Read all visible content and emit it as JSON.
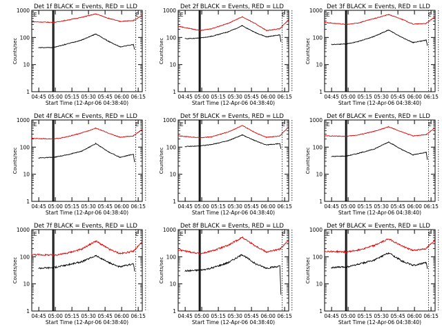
{
  "colors": {
    "events": "#000000",
    "lld": "#e00000",
    "axes": "#000000",
    "background": "#ffffff"
  },
  "shared": {
    "ylabel": "Counts/sec",
    "xlabel": "Start Time (12-Apr-06 04:38:40)",
    "xticks": [
      "04:45",
      "05:00",
      "05:15",
      "05:30",
      "05:45",
      "06:00",
      "06:15"
    ],
    "yticks": [
      "1",
      "10",
      "100",
      "1000"
    ],
    "ylim": [
      1,
      1000
    ],
    "yscale": "log",
    "xlim_minutes_after_start": [
      0,
      100
    ],
    "flag_label": "E"
  },
  "chart_data": [
    {
      "type": "line",
      "title": "Det 1f BLACK = Events, RED = LLD",
      "vlines_minutes": [
        19,
        20,
        94,
        103
      ],
      "flag_minutes": [
        1,
        93
      ],
      "series": [
        {
          "name": "Events",
          "color": "#000000",
          "x_minutes": [
            6,
            20,
            30,
            45,
            58,
            70,
            80,
            92,
            93
          ],
          "y": [
            42,
            43,
            55,
            80,
            135,
            70,
            45,
            55,
            35
          ]
        },
        {
          "name": "LLD",
          "color": "#e00000",
          "x_minutes": [
            0,
            20,
            30,
            45,
            58,
            70,
            80,
            92,
            100
          ],
          "y": [
            380,
            360,
            420,
            550,
            740,
            500,
            390,
            420,
            650
          ]
        }
      ]
    },
    {
      "type": "line",
      "title": "Det 2f BLACK = Events, RED = LLD",
      "vlines_minutes": [
        19,
        20,
        94,
        103
      ],
      "flag_minutes": [
        1,
        93
      ],
      "series": [
        {
          "name": "Events",
          "color": "#000000",
          "x_minutes": [
            6,
            20,
            30,
            45,
            58,
            70,
            80,
            92,
            93
          ],
          "y": [
            90,
            95,
            110,
            160,
            270,
            150,
            105,
            125,
            70
          ]
        },
        {
          "name": "LLD",
          "color": "#e00000",
          "x_minutes": [
            0,
            20,
            30,
            45,
            58,
            70,
            80,
            92,
            100
          ],
          "y": [
            260,
            180,
            210,
            330,
            580,
            320,
            180,
            210,
            450
          ]
        }
      ]
    },
    {
      "type": "line",
      "title": "Det 3f BLACK = Events, RED = LLD",
      "vlines_minutes": [
        19,
        20,
        94,
        103
      ],
      "flag_minutes": [
        1,
        93
      ],
      "series": [
        {
          "name": "Events",
          "color": "#000000",
          "x_minutes": [
            6,
            20,
            30,
            45,
            58,
            70,
            80,
            92,
            93
          ],
          "y": [
            55,
            58,
            70,
            110,
            190,
            100,
            65,
            80,
            50
          ]
        },
        {
          "name": "LLD",
          "color": "#e00000",
          "x_minutes": [
            0,
            20,
            30,
            45,
            58,
            70,
            80,
            92,
            100
          ],
          "y": [
            360,
            300,
            340,
            500,
            700,
            470,
            310,
            330,
            580
          ]
        }
      ]
    },
    {
      "type": "line",
      "title": "Det 4f BLACK = Events, RED = LLD",
      "vlines_minutes": [
        19,
        20,
        94,
        103
      ],
      "flag_minutes": [
        1,
        93
      ],
      "series": [
        {
          "name": "Events",
          "color": "#000000",
          "x_minutes": [
            6,
            20,
            30,
            45,
            58,
            70,
            80,
            92,
            93
          ],
          "y": [
            40,
            42,
            50,
            70,
            135,
            65,
            42,
            55,
            28
          ]
        },
        {
          "name": "LLD",
          "color": "#e00000",
          "x_minutes": [
            0,
            20,
            30,
            45,
            58,
            70,
            80,
            92,
            100
          ],
          "y": [
            210,
            200,
            230,
            330,
            500,
            320,
            230,
            260,
            450
          ]
        }
      ]
    },
    {
      "type": "line",
      "title": "Det 5f BLACK = Events, RED = LLD",
      "vlines_minutes": [
        19,
        20,
        94,
        103
      ],
      "flag_minutes": [
        1,
        93
      ],
      "series": [
        {
          "name": "Events",
          "color": "#000000",
          "x_minutes": [
            6,
            20,
            30,
            45,
            58,
            70,
            80,
            92,
            93
          ],
          "y": [
            105,
            110,
            125,
            170,
            280,
            170,
            120,
            135,
            85
          ]
        },
        {
          "name": "LLD",
          "color": "#e00000",
          "x_minutes": [
            0,
            20,
            30,
            45,
            58,
            70,
            80,
            92,
            100
          ],
          "y": [
            260,
            220,
            240,
            360,
            620,
            340,
            230,
            260,
            560
          ]
        }
      ]
    },
    {
      "type": "line",
      "title": "Det 6f BLACK = Events, RED = LLD",
      "vlines_minutes": [
        19,
        20,
        94,
        103
      ],
      "flag_minutes": [
        1,
        93
      ],
      "series": [
        {
          "name": "Events",
          "color": "#000000",
          "x_minutes": [
            6,
            20,
            30,
            45,
            58,
            70,
            80,
            92,
            93
          ],
          "y": [
            45,
            47,
            58,
            85,
            155,
            80,
            52,
            65,
            35
          ]
        },
        {
          "name": "LLD",
          "color": "#e00000",
          "x_minutes": [
            0,
            20,
            30,
            45,
            58,
            70,
            80,
            92,
            100
          ],
          "y": [
            260,
            250,
            280,
            380,
            560,
            360,
            260,
            290,
            520
          ]
        }
      ]
    },
    {
      "type": "line",
      "title": "Det 7f BLACK = Events, RED = LLD",
      "vlines_minutes": [
        19,
        20,
        94,
        103
      ],
      "flag_minutes": [
        1,
        93
      ],
      "series": [
        {
          "name": "Events",
          "color": "#000000",
          "x_minutes": [
            6,
            20,
            30,
            45,
            58,
            70,
            80,
            92,
            93
          ],
          "y": [
            38,
            40,
            48,
            65,
            110,
            60,
            42,
            55,
            30
          ]
        },
        {
          "name": "LLD",
          "color": "#e00000",
          "x_minutes": [
            0,
            20,
            30,
            45,
            58,
            70,
            80,
            92,
            100
          ],
          "y": [
            120,
            115,
            130,
            190,
            380,
            190,
            130,
            160,
            360
          ]
        }
      ]
    },
    {
      "type": "line",
      "title": "Det 8f BLACK = Events, RED = LLD",
      "vlines_minutes": [
        19,
        20,
        94,
        103
      ],
      "flag_minutes": [
        1,
        93
      ],
      "series": [
        {
          "name": "Events",
          "color": "#000000",
          "x_minutes": [
            6,
            20,
            30,
            45,
            58,
            70,
            80,
            92,
            93
          ],
          "y": [
            30,
            32,
            38,
            60,
            120,
            55,
            38,
            45,
            4
          ]
        },
        {
          "name": "LLD",
          "color": "#e00000",
          "x_minutes": [
            0,
            20,
            30,
            45,
            58,
            70,
            80,
            92,
            100
          ],
          "y": [
            180,
            130,
            160,
            260,
            520,
            250,
            150,
            190,
            400
          ]
        }
      ]
    },
    {
      "type": "line",
      "title": "Det 9f BLACK = Events, RED = LLD",
      "vlines_minutes": [
        19,
        20,
        94,
        103
      ],
      "flag_minutes": [
        1,
        93
      ],
      "series": [
        {
          "name": "Events",
          "color": "#000000",
          "x_minutes": [
            6,
            20,
            30,
            45,
            58,
            70,
            80,
            92,
            93
          ],
          "y": [
            40,
            42,
            52,
            75,
            140,
            70,
            48,
            60,
            35
          ]
        },
        {
          "name": "LLD",
          "color": "#e00000",
          "x_minutes": [
            0,
            20,
            30,
            45,
            58,
            70,
            80,
            92,
            100
          ],
          "y": [
            160,
            150,
            175,
            260,
            460,
            250,
            170,
            200,
            420
          ]
        }
      ]
    }
  ]
}
